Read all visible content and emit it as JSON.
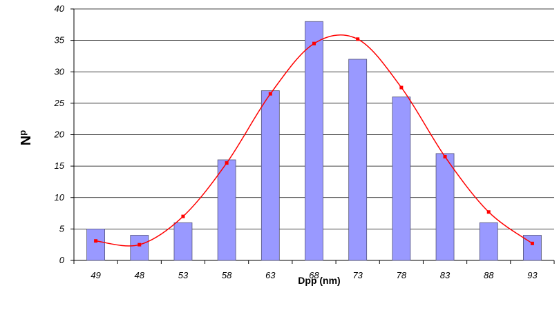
{
  "chart_data": {
    "type": "bar",
    "categories": [
      "49",
      "48",
      "53",
      "58",
      "63",
      "68",
      "73",
      "78",
      "83",
      "88",
      "93"
    ],
    "series": [
      {
        "values": [
          5,
          4,
          6,
          16,
          27,
          38,
          32,
          26,
          17,
          6,
          4
        ],
        "color": "#9999ff"
      }
    ],
    "fit_curve": {
      "type": "line",
      "smooth": true,
      "values": [
        3.1,
        2.5,
        7,
        15.5,
        26.5,
        34.5,
        35.2,
        27.5,
        16.5,
        7.7,
        2.7
      ],
      "color": "#ff0000"
    },
    "xlabel": "Dpp (nm)",
    "ylabel": {
      "main": "N",
      "sub": "p"
    },
    "ylim": [
      0,
      40
    ],
    "yticks": [
      0,
      5,
      10,
      15,
      20,
      25,
      30,
      35,
      40
    ],
    "grid": "horizontal",
    "legend": "none"
  }
}
